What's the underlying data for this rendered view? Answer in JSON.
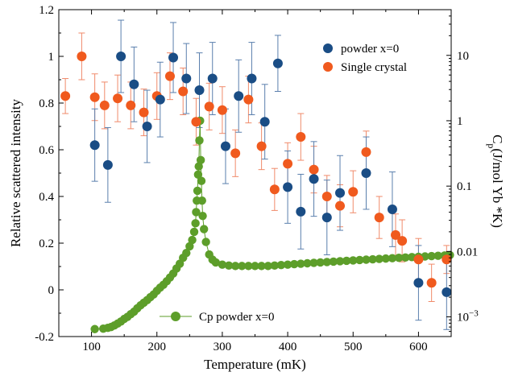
{
  "chart_data": {
    "type": "scatter",
    "xlabel": "Temperature (mK)",
    "ylabel_left": "Relative scattered intensity",
    "ylabel_right": {
      "base": "C",
      "sub": "p",
      "rest": "(J/mol Yb *K)"
    },
    "xlim": [
      50,
      650
    ],
    "ylim_left": [
      -0.2,
      1.2
    ],
    "ylim_right": [
      0.0005,
      50
    ],
    "right_axis_scale": "log",
    "x_ticks": [
      "100",
      "200",
      "300",
      "400",
      "500",
      "600"
    ],
    "x_tick_values": [
      100,
      200,
      300,
      400,
      500,
      600
    ],
    "y_left_ticks": [
      "-0.2",
      "0",
      "0.2",
      "0.4",
      "0.6",
      "0.8",
      "1",
      "1.2"
    ],
    "y_left_tick_values": [
      -0.2,
      0,
      0.2,
      0.4,
      0.6,
      0.8,
      1,
      1.2
    ],
    "y_right_ticks": [
      {
        "value": 0.001,
        "mantissa": "10",
        "exp": "−3",
        "label": ""
      },
      {
        "value": 0.01,
        "label": "0.01"
      },
      {
        "value": 0.1,
        "label": "0.1"
      },
      {
        "value": 1,
        "label": "1"
      },
      {
        "value": 10,
        "label": "10"
      }
    ],
    "legend_position": "top-right",
    "series": [
      {
        "name": "powder x=0",
        "axis": "left",
        "color": "#1a4d85",
        "error_color": "#5a7fad",
        "points": [
          {
            "x": 105,
            "y": 0.62,
            "err": 0.155
          },
          {
            "x": 125,
            "y": 0.535,
            "err": 0.16
          },
          {
            "x": 145,
            "y": 1.0,
            "err": 0.155
          },
          {
            "x": 165,
            "y": 0.88,
            "err": 0.16
          },
          {
            "x": 185,
            "y": 0.7,
            "err": 0.155
          },
          {
            "x": 205,
            "y": 0.815,
            "err": 0.16
          },
          {
            "x": 225,
            "y": 0.995,
            "err": 0.15
          },
          {
            "x": 245,
            "y": 0.905,
            "err": 0.15
          },
          {
            "x": 265,
            "y": 0.855,
            "err": 0.16
          },
          {
            "x": 285,
            "y": 0.905,
            "err": 0.155
          },
          {
            "x": 305,
            "y": 0.615,
            "err": 0.16
          },
          {
            "x": 325,
            "y": 0.83,
            "err": 0.155
          },
          {
            "x": 345,
            "y": 0.905,
            "err": 0.155
          },
          {
            "x": 365,
            "y": 0.72,
            "err": 0.16
          },
          {
            "x": 385,
            "y": 0.97,
            "err": 0.12
          },
          {
            "x": 400,
            "y": 0.44,
            "err": 0.155
          },
          {
            "x": 420,
            "y": 0.335,
            "err": 0.16
          },
          {
            "x": 440,
            "y": 0.475,
            "err": 0.16
          },
          {
            "x": 460,
            "y": 0.31,
            "err": 0.16
          },
          {
            "x": 480,
            "y": 0.415,
            "err": 0.16
          },
          {
            "x": 520,
            "y": 0.5,
            "err": 0.155
          },
          {
            "x": 560,
            "y": 0.345,
            "err": 0.16
          },
          {
            "x": 600,
            "y": 0.03,
            "err": 0.16
          },
          {
            "x": 643,
            "y": -0.01,
            "err": 0.16
          }
        ]
      },
      {
        "name": "Single crystal",
        "axis": "left",
        "color": "#f05a1e",
        "error_color": "#f08a6a",
        "points": [
          {
            "x": 60,
            "y": 0.83,
            "err": 0.075
          },
          {
            "x": 85,
            "y": 1.0,
            "err": 0.1
          },
          {
            "x": 105,
            "y": 0.825,
            "err": 0.1
          },
          {
            "x": 120,
            "y": 0.79,
            "err": 0.1
          },
          {
            "x": 140,
            "y": 0.82,
            "err": 0.1
          },
          {
            "x": 160,
            "y": 0.79,
            "err": 0.1
          },
          {
            "x": 180,
            "y": 0.76,
            "err": 0.1
          },
          {
            "x": 200,
            "y": 0.83,
            "err": 0.1
          },
          {
            "x": 220,
            "y": 0.915,
            "err": 0.1
          },
          {
            "x": 240,
            "y": 0.85,
            "err": 0.1
          },
          {
            "x": 260,
            "y": 0.72,
            "err": 0.1
          },
          {
            "x": 280,
            "y": 0.785,
            "err": 0.1
          },
          {
            "x": 300,
            "y": 0.77,
            "err": 0.1
          },
          {
            "x": 320,
            "y": 0.585,
            "err": 0.1
          },
          {
            "x": 340,
            "y": 0.815,
            "err": 0.1
          },
          {
            "x": 360,
            "y": 0.615,
            "err": 0.1
          },
          {
            "x": 380,
            "y": 0.43,
            "err": 0.09
          },
          {
            "x": 400,
            "y": 0.54,
            "err": 0.09
          },
          {
            "x": 420,
            "y": 0.655,
            "err": 0.1
          },
          {
            "x": 440,
            "y": 0.515,
            "err": 0.1
          },
          {
            "x": 460,
            "y": 0.4,
            "err": 0.09
          },
          {
            "x": 480,
            "y": 0.36,
            "err": 0.09
          },
          {
            "x": 500,
            "y": 0.42,
            "err": 0.09
          },
          {
            "x": 520,
            "y": 0.59,
            "err": 0.09
          },
          {
            "x": 540,
            "y": 0.31,
            "err": 0.09
          },
          {
            "x": 565,
            "y": 0.235,
            "err": 0.09
          },
          {
            "x": 575,
            "y": 0.21,
            "err": 0.09
          },
          {
            "x": 600,
            "y": 0.13,
            "err": 0.09
          },
          {
            "x": 620,
            "y": 0.03,
            "err": 0.08
          },
          {
            "x": 643,
            "y": 0.13,
            "err": 0.06
          }
        ]
      },
      {
        "name": "Cp  powder x=0",
        "axis": "right",
        "color": "#5d9e2a",
        "points": [
          {
            "x": 105,
            "y": 0.00065
          },
          {
            "x": 118,
            "y": 0.00066
          },
          {
            "x": 125,
            "y": 0.00068
          },
          {
            "x": 130,
            "y": 0.0007
          },
          {
            "x": 135,
            "y": 0.00074
          },
          {
            "x": 140,
            "y": 0.00079
          },
          {
            "x": 145,
            "y": 0.00085
          },
          {
            "x": 150,
            "y": 0.00093
          },
          {
            "x": 155,
            "y": 0.001
          },
          {
            "x": 160,
            "y": 0.0011
          },
          {
            "x": 165,
            "y": 0.0012
          },
          {
            "x": 170,
            "y": 0.00135
          },
          {
            "x": 175,
            "y": 0.0015
          },
          {
            "x": 180,
            "y": 0.00165
          },
          {
            "x": 185,
            "y": 0.0018
          },
          {
            "x": 190,
            "y": 0.002
          },
          {
            "x": 195,
            "y": 0.0022
          },
          {
            "x": 200,
            "y": 0.0025
          },
          {
            "x": 205,
            "y": 0.0028
          },
          {
            "x": 210,
            "y": 0.0031
          },
          {
            "x": 215,
            "y": 0.0035
          },
          {
            "x": 220,
            "y": 0.004
          },
          {
            "x": 225,
            "y": 0.0046
          },
          {
            "x": 230,
            "y": 0.0055
          },
          {
            "x": 235,
            "y": 0.0065
          },
          {
            "x": 240,
            "y": 0.008
          },
          {
            "x": 245,
            "y": 0.0095
          },
          {
            "x": 250,
            "y": 0.012
          },
          {
            "x": 254,
            "y": 0.015
          },
          {
            "x": 257,
            "y": 0.02
          },
          {
            "x": 259,
            "y": 0.027
          },
          {
            "x": 260,
            "y": 0.04
          },
          {
            "x": 261,
            "y": 0.06
          },
          {
            "x": 262,
            "y": 0.085
          },
          {
            "x": 263,
            "y": 0.15
          },
          {
            "x": 264,
            "y": 0.2
          },
          {
            "x": 265,
            "y": 0.5
          },
          {
            "x": 266,
            "y": 1.0
          },
          {
            "x": 267,
            "y": 0.25
          },
          {
            "x": 268,
            "y": 0.12
          },
          {
            "x": 269,
            "y": 0.06
          },
          {
            "x": 270,
            "y": 0.035
          },
          {
            "x": 272,
            "y": 0.022
          },
          {
            "x": 275,
            "y": 0.014
          },
          {
            "x": 280,
            "y": 0.009
          },
          {
            "x": 285,
            "y": 0.0075
          },
          {
            "x": 290,
            "y": 0.0068
          },
          {
            "x": 300,
            "y": 0.0063
          },
          {
            "x": 310,
            "y": 0.0061
          },
          {
            "x": 320,
            "y": 0.006
          },
          {
            "x": 330,
            "y": 0.006
          },
          {
            "x": 340,
            "y": 0.006
          },
          {
            "x": 350,
            "y": 0.006
          },
          {
            "x": 360,
            "y": 0.006
          },
          {
            "x": 370,
            "y": 0.006
          },
          {
            "x": 380,
            "y": 0.0061
          },
          {
            "x": 390,
            "y": 0.0062
          },
          {
            "x": 400,
            "y": 0.0063
          },
          {
            "x": 410,
            "y": 0.0064
          },
          {
            "x": 420,
            "y": 0.0065
          },
          {
            "x": 430,
            "y": 0.0066
          },
          {
            "x": 440,
            "y": 0.0067
          },
          {
            "x": 450,
            "y": 0.0068
          },
          {
            "x": 460,
            "y": 0.0069
          },
          {
            "x": 470,
            "y": 0.007
          },
          {
            "x": 480,
            "y": 0.0071
          },
          {
            "x": 490,
            "y": 0.0072
          },
          {
            "x": 500,
            "y": 0.0073
          },
          {
            "x": 510,
            "y": 0.0074
          },
          {
            "x": 520,
            "y": 0.0075
          },
          {
            "x": 530,
            "y": 0.0076
          },
          {
            "x": 540,
            "y": 0.0077
          },
          {
            "x": 550,
            "y": 0.0078
          },
          {
            "x": 560,
            "y": 0.0079
          },
          {
            "x": 570,
            "y": 0.008
          },
          {
            "x": 580,
            "y": 0.0081
          },
          {
            "x": 590,
            "y": 0.0082
          },
          {
            "x": 600,
            "y": 0.0083
          },
          {
            "x": 610,
            "y": 0.0084
          },
          {
            "x": 620,
            "y": 0.0085
          },
          {
            "x": 630,
            "y": 0.0086
          },
          {
            "x": 640,
            "y": 0.0087
          },
          {
            "x": 648,
            "y": 0.0088
          }
        ]
      }
    ]
  }
}
